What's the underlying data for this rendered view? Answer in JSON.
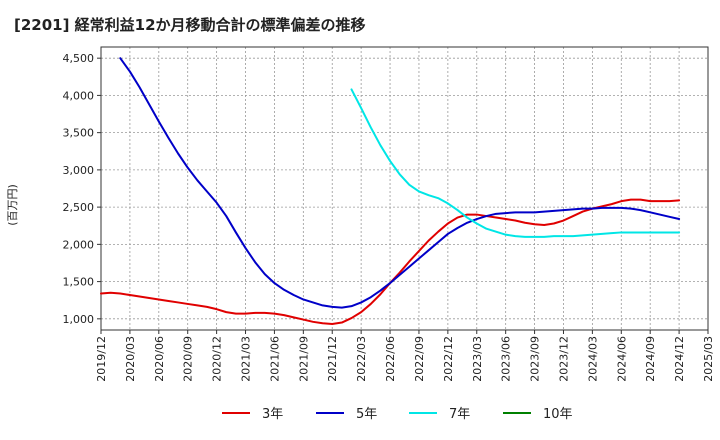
{
  "title": "[2201]  経常利益12か月移動合計の標準偏差の推移",
  "chart_data": {
    "type": "line",
    "title": "[2201]  経常利益12か月移動合計の標準偏差の推移",
    "ylabel": "(百万円)",
    "xlabel": "",
    "ylim": [
      850,
      4650
    ],
    "yticks": [
      1000,
      1500,
      2000,
      2500,
      3000,
      3500,
      4000,
      4500
    ],
    "ytick_labels": [
      "1,000",
      "1,500",
      "2,000",
      "2,500",
      "3,000",
      "3,500",
      "4,000",
      "4,500"
    ],
    "xticks": [
      "2019/12",
      "2020/03",
      "2020/06",
      "2020/09",
      "2020/12",
      "2021/03",
      "2021/06",
      "2021/09",
      "2021/12",
      "2022/03",
      "2022/06",
      "2022/09",
      "2022/12",
      "2023/03",
      "2023/06",
      "2023/09",
      "2023/12",
      "2024/03",
      "2024/06",
      "2024/09",
      "2024/12",
      "2025/03"
    ],
    "grid": true,
    "legend_position": "bottom",
    "series": [
      {
        "name": "3年",
        "color": "#e00000",
        "start": "2019/12",
        "values": [
          1340,
          1350,
          1340,
          1320,
          1300,
          1280,
          1260,
          1240,
          1220,
          1200,
          1180,
          1160,
          1130,
          1090,
          1070,
          1070,
          1080,
          1080,
          1070,
          1050,
          1020,
          990,
          960,
          940,
          930,
          950,
          1010,
          1090,
          1200,
          1330,
          1480,
          1620,
          1770,
          1910,
          2050,
          2170,
          2280,
          2360,
          2400,
          2400,
          2380,
          2360,
          2340,
          2320,
          2290,
          2270,
          2260,
          2280,
          2320,
          2380,
          2440,
          2480,
          2510,
          2540,
          2580,
          2600,
          2600,
          2580,
          2580,
          2580,
          2590
        ]
      },
      {
        "name": "5年",
        "color": "#0000c8",
        "start": "2020/02",
        "values": [
          4500,
          4320,
          4110,
          3880,
          3650,
          3430,
          3220,
          3030,
          2860,
          2710,
          2560,
          2380,
          2160,
          1950,
          1760,
          1600,
          1480,
          1390,
          1320,
          1260,
          1220,
          1180,
          1160,
          1150,
          1170,
          1220,
          1290,
          1380,
          1480,
          1590,
          1700,
          1810,
          1920,
          2030,
          2140,
          2220,
          2290,
          2340,
          2380,
          2410,
          2420,
          2430,
          2430,
          2430,
          2440,
          2450,
          2460,
          2470,
          2480,
          2480,
          2490,
          2490,
          2490,
          2480,
          2460,
          2430,
          2400,
          2370,
          2340
        ]
      },
      {
        "name": "7年",
        "color": "#00e6e6",
        "start": "2022/02",
        "values": [
          4080,
          3830,
          3570,
          3330,
          3120,
          2940,
          2800,
          2710,
          2660,
          2620,
          2550,
          2460,
          2360,
          2280,
          2210,
          2170,
          2130,
          2110,
          2100,
          2100,
          2100,
          2110,
          2110,
          2110,
          2120,
          2130,
          2140,
          2150,
          2160,
          2160,
          2160,
          2160,
          2160,
          2160,
          2160
        ]
      },
      {
        "name": "10年",
        "color": "#008000",
        "start": "",
        "values": []
      }
    ]
  }
}
